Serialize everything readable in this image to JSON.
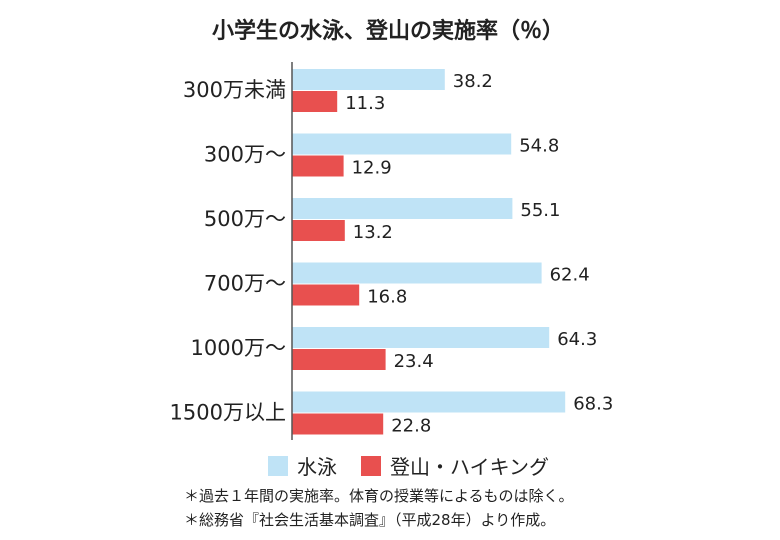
{
  "chart_data": {
    "type": "bar",
    "orientation": "horizontal",
    "title": "小学生の水泳、登山の実施率（％）",
    "categories": [
      "300万未満",
      "300万～",
      "500万～",
      "700万～",
      "1000万～",
      "1500万以上"
    ],
    "series": [
      {
        "name": "水泳",
        "values": [
          38.2,
          54.8,
          55.1,
          62.4,
          64.3,
          68.3
        ],
        "color": "#bfe3f6"
      },
      {
        "name": "登山・ハイキング",
        "values": [
          11.3,
          12.9,
          13.2,
          16.8,
          23.4,
          22.8
        ],
        "color": "#e8504f"
      }
    ],
    "xlim": [
      0,
      70
    ],
    "grid": false,
    "legend_position": "bottom"
  },
  "colors": {
    "axis": "#555555",
    "text": "#222222"
  },
  "notes": [
    "＊過去１年間の実施率。体育の授業等によるものは除く。",
    "＊総務省『社会生活基本調査』（平成28年）より作成。"
  ]
}
